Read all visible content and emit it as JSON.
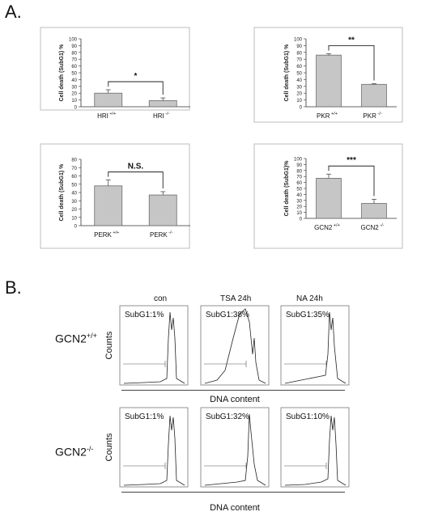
{
  "panels": {
    "a": "A.",
    "b": "B."
  },
  "chart_data": [
    {
      "type": "bar",
      "panel": "A",
      "ylabel": "Cell death (SubG1) %",
      "ylim": [
        0,
        100
      ],
      "yticks": [
        0,
        10,
        20,
        30,
        40,
        50,
        60,
        70,
        80,
        90,
        100
      ],
      "categories": [
        {
          "name": "HRI",
          "sup": "+/+"
        },
        {
          "name": "HRI",
          "sup": "-/-"
        }
      ],
      "values": [
        20,
        9
      ],
      "errors": [
        5,
        4
      ],
      "significance": "*"
    },
    {
      "type": "bar",
      "panel": "A",
      "ylabel": "Cell death (SubG1) %",
      "ylim": [
        0,
        100
      ],
      "yticks": [
        0,
        10,
        20,
        30,
        40,
        50,
        60,
        70,
        80,
        90,
        100
      ],
      "categories": [
        {
          "name": "PKR",
          "sup": "+/+"
        },
        {
          "name": "PKR",
          "sup": "-/-"
        }
      ],
      "values": [
        76,
        33
      ],
      "errors": [
        2,
        1
      ],
      "significance": "**"
    },
    {
      "type": "bar",
      "panel": "A",
      "ylabel": "Cell death (SubG1) %",
      "ylim": [
        0,
        80
      ],
      "yticks": [
        0,
        10,
        20,
        30,
        40,
        50,
        60,
        70,
        80
      ],
      "categories": [
        {
          "name": "PERK",
          "sup": "+/+"
        },
        {
          "name": "PERK",
          "sup": "-/-"
        }
      ],
      "values": [
        48,
        37
      ],
      "errors": [
        7,
        4
      ],
      "significance": "N.S."
    },
    {
      "type": "bar",
      "panel": "A",
      "ylabel": "Cell death (SubG1)%",
      "ylim": [
        0,
        100
      ],
      "yticks": [
        0,
        10,
        20,
        30,
        40,
        50,
        60,
        70,
        80,
        90,
        100
      ],
      "categories": [
        {
          "name": "GCN2",
          "sup": "+/+"
        },
        {
          "name": "GCN2",
          "sup": "-/-"
        }
      ],
      "values": [
        67,
        25
      ],
      "errors": [
        7,
        7
      ],
      "significance": "***"
    }
  ],
  "flow": {
    "headers": [
      "con",
      "TSA 24h",
      "NA 24h"
    ],
    "counts_label": "Counts",
    "xlabel": "DNA content",
    "rows": [
      {
        "label": "GCN2",
        "sup": "+/+",
        "values": [
          "SubG1:1%",
          "SubG1:38%",
          "SubG1:35%"
        ]
      },
      {
        "label": "GCN2",
        "sup": "-/-",
        "values": [
          "SubG1:1%",
          "SubG1:32%",
          "SubG1:10%"
        ]
      }
    ]
  }
}
